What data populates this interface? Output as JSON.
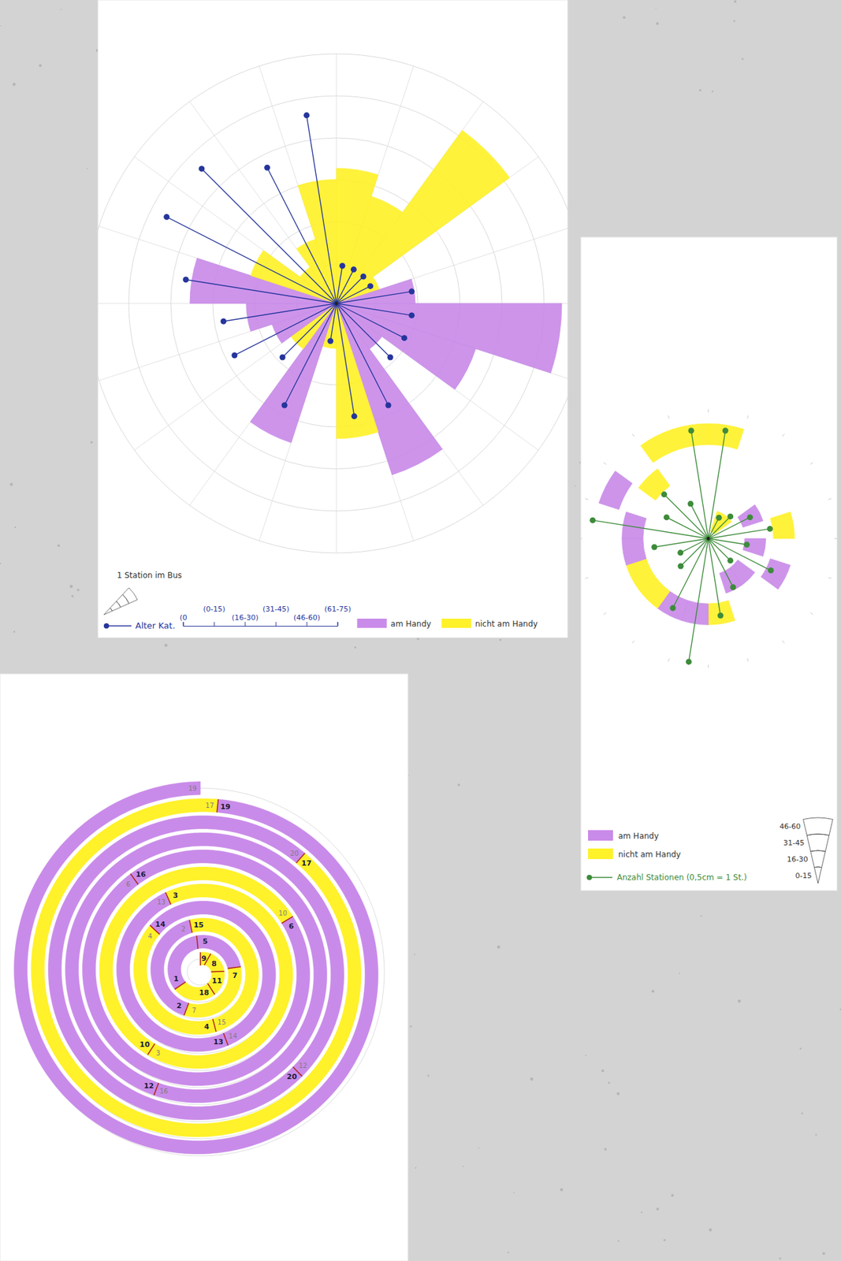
{
  "chart_data": [
    {
      "type": "radial",
      "categories": [
        null,
        null,
        null,
        null,
        null,
        null,
        null,
        null,
        null,
        null,
        null,
        null,
        null,
        null,
        null,
        null,
        null,
        null,
        null,
        null
      ],
      "groups": [
        {
          "name": "am Handy",
          "color": "#c98be9"
        },
        {
          "name": "nicht am Handy",
          "color": "#fff12a"
        }
      ],
      "series": [
        {
          "name": "1 Station im Bus",
          "type": "wedge",
          "values": [
            12,
            10,
            19,
            4,
            7,
            20,
            13,
            5,
            16,
            12,
            4,
            13,
            5,
            6,
            8,
            13,
            8,
            4,
            6,
            11
          ],
          "group": [
            1,
            1,
            1,
            1,
            0,
            0,
            0,
            0,
            0,
            1,
            1,
            0,
            1,
            0,
            0,
            0,
            1,
            1,
            1,
            1
          ]
        },
        {
          "name": "Alter Kat.",
          "type": "lollipop",
          "color": "#26359c",
          "axis": "y2",
          "values": [
            1,
            1,
            1,
            1,
            2,
            2,
            2,
            2,
            3,
            3,
            1,
            3,
            2,
            3,
            3,
            4,
            5,
            5,
            4,
            5
          ]
        }
      ],
      "ylim": [
        0,
        20
      ],
      "y2lim": [
        0,
        5
      ],
      "y2ticks": [
        {
          "value": 0,
          "label": "(0"
        },
        {
          "value": 1,
          "label": "(0-15)"
        },
        {
          "value": 2,
          "label": "(16-30)"
        },
        {
          "value": 3,
          "label": "(31-45)"
        },
        {
          "value": 4,
          "label": "(46-60)"
        },
        {
          "value": 5,
          "label": "(61-75)"
        }
      ]
    },
    {
      "type": "radial",
      "categories": [
        null,
        null,
        null,
        null,
        null,
        null,
        null,
        null,
        null,
        null,
        null,
        null,
        null,
        null,
        null,
        null,
        null,
        null,
        null,
        null
      ],
      "groups": [
        {
          "name": "am Handy",
          "color": "#c98be9"
        },
        {
          "name": "nicht am Handy",
          "color": "#fff12a"
        }
      ],
      "series": [
        {
          "type": "ring",
          "axis": "y2",
          "values": [
            4,
            1,
            1,
            2,
            3,
            2,
            3,
            2,
            2,
            3,
            3,
            3,
            3,
            3,
            3,
            3,
            4,
            3,
            4,
            4
          ],
          "group": [
            1,
            1,
            1,
            0,
            1,
            0,
            0,
            0,
            0,
            1,
            0,
            0,
            1,
            1,
            0,
            0,
            0,
            1,
            1,
            1
          ]
        },
        {
          "name": "Anzahl Stationen (0,5cm = 1 St.)",
          "type": "lollipop",
          "color": "#3d8b3a",
          "values": [
            14,
            3,
            4,
            6,
            8,
            5,
            9,
            4,
            7,
            10,
            16,
            10,
            5,
            4,
            7,
            15,
            6,
            8,
            5,
            14
          ]
        }
      ],
      "ylim": [
        0,
        16
      ],
      "y2lim": [
        0,
        4
      ],
      "y2ticks": [
        {
          "value": 1,
          "label": "0-15"
        },
        {
          "value": 2,
          "label": "16-30"
        },
        {
          "value": 3,
          "label": "31-45"
        },
        {
          "value": 4,
          "label": "46-60"
        }
      ]
    },
    {
      "type": "spiral",
      "categories": [
        "9",
        "8",
        "11",
        "18",
        "1",
        "5",
        "7",
        "2",
        "15",
        "4",
        "14",
        "13",
        "3",
        "10",
        "6",
        "16",
        "12",
        "20",
        "17",
        "19"
      ],
      "values": [
        1,
        2,
        2,
        3,
        4,
        3,
        4,
        5,
        6,
        5,
        7,
        6,
        8,
        7,
        9,
        8,
        10,
        9,
        11,
        12
      ],
      "colors": [
        "#fff12a",
        "#fff12a",
        "#fff12a",
        "#fff12a",
        "#c98be9",
        "#c98be9",
        "#fff12a",
        "#c98be9",
        "#fff12a",
        "#fff12a",
        "#c98be9",
        "#c98be9",
        "#fff12a",
        "#fff12a",
        "#c98be9",
        "#c98be9",
        "#c98be9",
        "#c98be9",
        "#fff12a",
        "#c98be9"
      ],
      "xlim": [
        0,
        122
      ]
    }
  ]
}
